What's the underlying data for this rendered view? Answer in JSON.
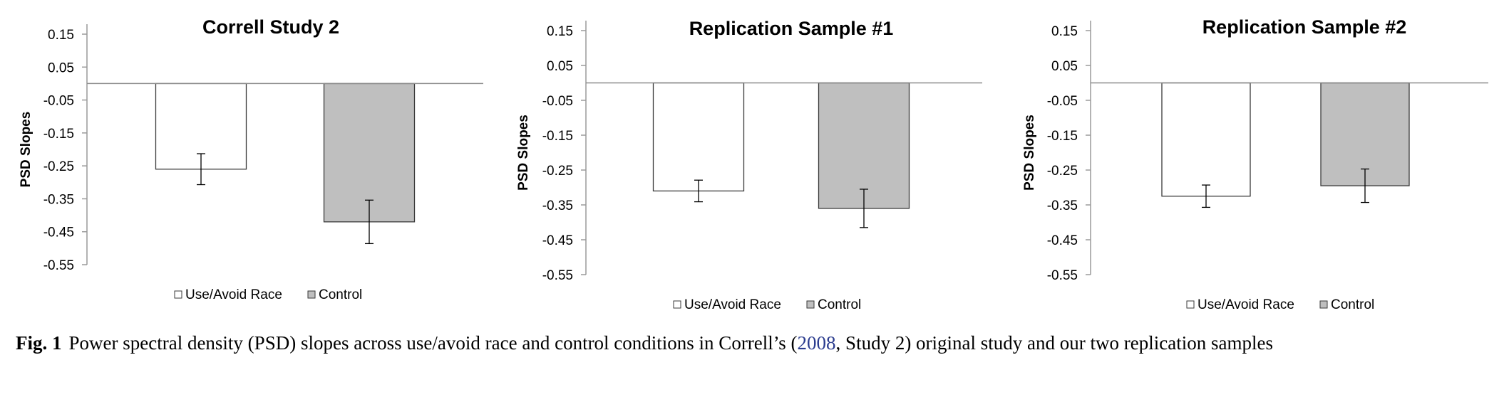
{
  "chart_data": [
    {
      "type": "bar",
      "title": "Correll Study 2",
      "ylabel": "PSD Slopes",
      "xlabel": "",
      "ylim": [
        -0.55,
        0.15
      ],
      "yticks": [
        "0.15",
        "0.05",
        "-0.05",
        "-0.15",
        "-0.25",
        "-0.35",
        "-0.45",
        "-0.55"
      ],
      "yticks_values": [
        0.15,
        0.05,
        -0.05,
        -0.15,
        -0.25,
        -0.35,
        -0.45,
        -0.55
      ],
      "baseline": 0,
      "legend_position": "bottom",
      "series": [
        {
          "name": "Use/Avoid Race",
          "value": -0.26,
          "error": 0.047,
          "color": "#ffffff"
        },
        {
          "name": "Control",
          "value": -0.42,
          "error": 0.066,
          "color": "#bfbfbf"
        }
      ]
    },
    {
      "type": "bar",
      "title": "Replication Sample #1",
      "ylabel": "PSD Slopes",
      "xlabel": "",
      "ylim": [
        -0.55,
        0.15
      ],
      "yticks": [
        "0.15",
        "0.05",
        "-0.05",
        "-0.15",
        "-0.25",
        "-0.35",
        "-0.45",
        "-0.55"
      ],
      "yticks_values": [
        0.15,
        0.05,
        -0.05,
        -0.15,
        -0.25,
        -0.35,
        -0.45,
        -0.55
      ],
      "baseline": 0,
      "legend_position": "bottom",
      "series": [
        {
          "name": "Use/Avoid Race",
          "value": -0.31,
          "error": 0.031,
          "color": "#ffffff"
        },
        {
          "name": "Control",
          "value": -0.36,
          "error": 0.055,
          "color": "#bfbfbf"
        }
      ]
    },
    {
      "type": "bar",
      "title": "Replication Sample #2",
      "ylabel": "PSD Slopes",
      "xlabel": "",
      "ylim": [
        -0.55,
        0.15
      ],
      "yticks": [
        "0.15",
        "0.05",
        "-0.05",
        "-0.15",
        "-0.25",
        "-0.35",
        "-0.45",
        "-0.55"
      ],
      "yticks_values": [
        0.15,
        0.05,
        -0.05,
        -0.15,
        -0.25,
        -0.35,
        -0.45,
        -0.55
      ],
      "baseline": 0,
      "legend_position": "bottom",
      "series": [
        {
          "name": "Use/Avoid Race",
          "value": -0.325,
          "error": 0.032,
          "color": "#ffffff"
        },
        {
          "name": "Control",
          "value": -0.295,
          "error": 0.048,
          "color": "#bfbfbf"
        }
      ]
    }
  ],
  "caption": {
    "label": "Fig. 1",
    "text_before": "Power spectral density (PSD) slopes across use/avoid race and control conditions in Correll’s (",
    "cite": "2008",
    "text_after": ", Study 2) original study and our two replication samples"
  }
}
